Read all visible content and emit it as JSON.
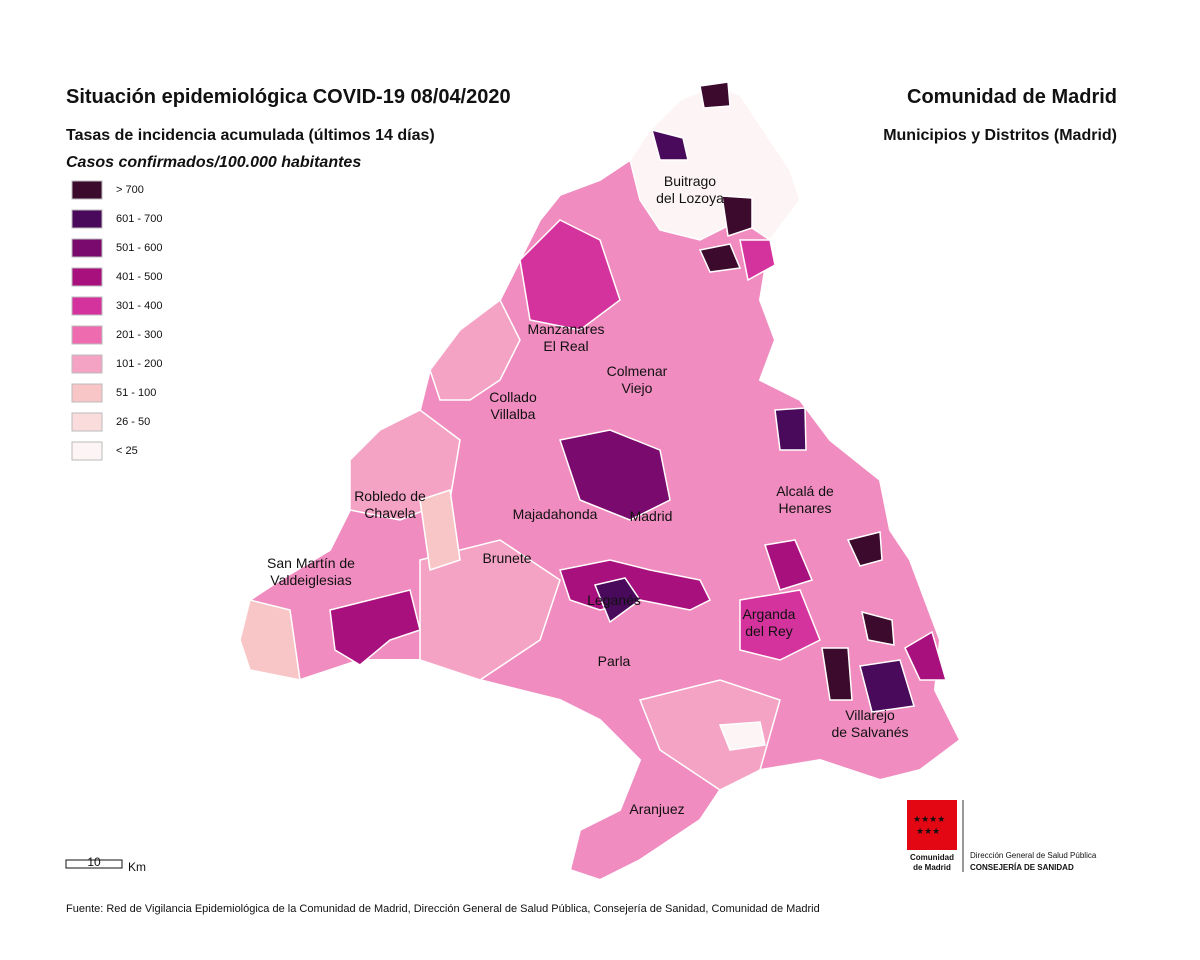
{
  "header": {
    "title": "Situación epidemiológica COVID-19  08/04/2020",
    "region": "Comunidad de Madrid",
    "subtitle": "Tasas de incidencia acumulada (últimos 14 días)",
    "scope": "Municipios y Distritos (Madrid)",
    "unit": "Casos confirmados/100.000 habitantes"
  },
  "legend": {
    "items": [
      {
        "label": "> 700",
        "color": "#3b0a2d"
      },
      {
        "label": "601 - 700",
        "color": "#4a0a5c"
      },
      {
        "label": "501 - 600",
        "color": "#7a0a6e"
      },
      {
        "label": "401 - 500",
        "color": "#a8107e"
      },
      {
        "label": "301 - 400",
        "color": "#d4329c"
      },
      {
        "label": "201 - 300",
        "color": "#ef6bb0"
      },
      {
        "label": "101 - 200",
        "color": "#f5a3c4"
      },
      {
        "label": "51 - 100",
        "color": "#f8c6c6"
      },
      {
        "label": "26 - 50",
        "color": "#fadcdc"
      },
      {
        "label": "< 25",
        "color": "#fdf5f5"
      }
    ]
  },
  "places": [
    {
      "lines": [
        "Buitrago",
        "del Lozoya"
      ]
    },
    {
      "lines": [
        "Manzanares",
        "El Real"
      ]
    },
    {
      "lines": [
        "Colmenar",
        "Viejo"
      ]
    },
    {
      "lines": [
        "Collado",
        "Villalba"
      ]
    },
    {
      "lines": [
        "Robledo de",
        "Chavela"
      ]
    },
    {
      "lines": [
        "Majadahonda"
      ]
    },
    {
      "lines": [
        "Madrid"
      ]
    },
    {
      "lines": [
        "Alcalá de",
        "Henares"
      ]
    },
    {
      "lines": [
        "San Martín de",
        "Valdeiglesias"
      ]
    },
    {
      "lines": [
        "Brunete"
      ]
    },
    {
      "lines": [
        "Leganés"
      ]
    },
    {
      "lines": [
        "Arganda",
        "del Rey"
      ]
    },
    {
      "lines": [
        "Parla"
      ]
    },
    {
      "lines": [
        "Villarejo",
        "de Salvanés"
      ]
    },
    {
      "lines": [
        "Aranjuez"
      ]
    }
  ],
  "scale": {
    "value": "10",
    "unit": "Km"
  },
  "logo": {
    "name_lines": [
      "Comunidad",
      "de Madrid"
    ],
    "dept_lines": [
      "Dirección General de Salud Pública",
      "CONSEJERÍA DE SANIDAD"
    ]
  },
  "source": "Fuente: Red de Vigilancia Epidemiológica de la Comunidad de Madrid, Dirección General de Salud Pública, Consejería de Sanidad, Comunidad de Madrid"
}
